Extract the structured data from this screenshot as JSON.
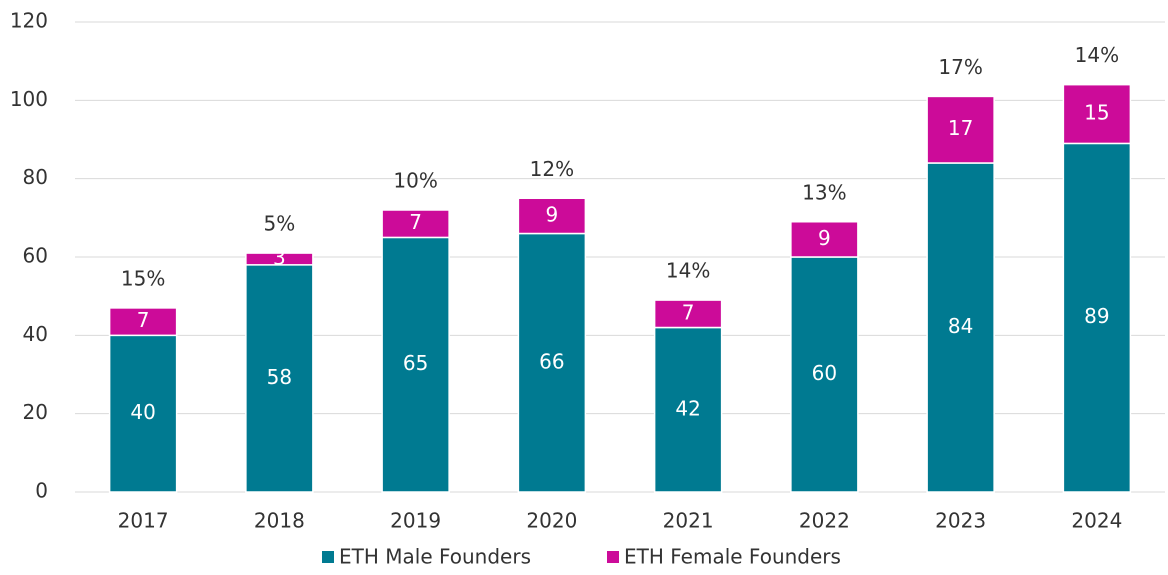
{
  "chart_data": {
    "type": "stacked_bar",
    "categories": [
      "2017",
      "2018",
      "2019",
      "2020",
      "2021",
      "2022",
      "2023",
      "2024"
    ],
    "series": [
      {
        "name": "ETH Male Founders",
        "color": "#007a91",
        "values": [
          40,
          58,
          65,
          66,
          42,
          60,
          84,
          89
        ]
      },
      {
        "name": "ETH Female Founders",
        "color": "#cc0b99",
        "values": [
          7,
          3,
          7,
          9,
          7,
          9,
          17,
          15
        ]
      }
    ],
    "annotations": [
      "15%",
      "5%",
      "10%",
      "12%",
      "14%",
      "13%",
      "17%",
      "14%"
    ],
    "ylim": [
      0,
      120
    ],
    "yticks": [
      0,
      20,
      40,
      60,
      80,
      100,
      120
    ],
    "grid": true,
    "legend": "bottom"
  }
}
